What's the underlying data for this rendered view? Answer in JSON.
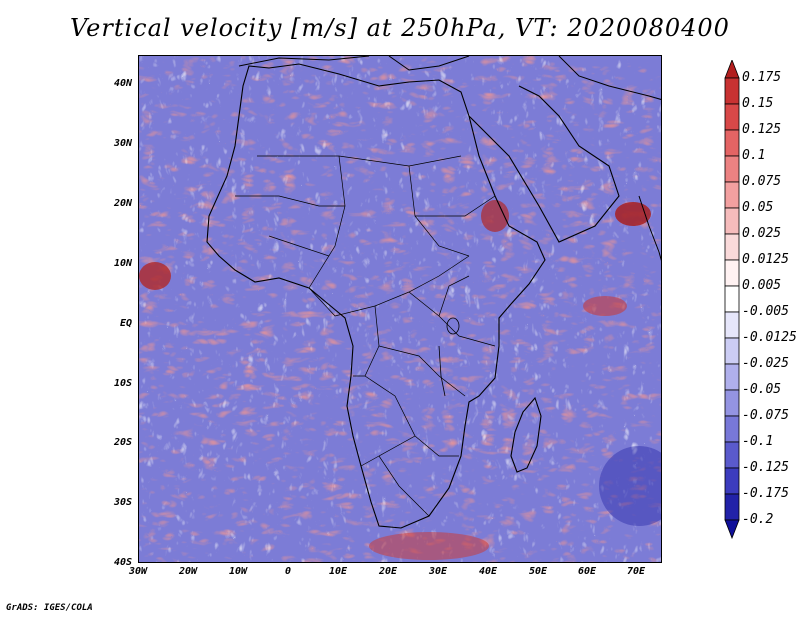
{
  "title": "Vertical velocity [m/s] at 250hPa, VT: 2020080400",
  "credit": "GrADS: IGES/COLA",
  "axes": {
    "lat_ticks": [
      "40N",
      "30N",
      "20N",
      "10N",
      "EQ",
      "10S",
      "20S",
      "30S",
      "40S"
    ],
    "lon_ticks": [
      "30W",
      "20W",
      "10W",
      "0",
      "10E",
      "20E",
      "30E",
      "40E",
      "50E",
      "60E",
      "70E"
    ],
    "lat_range": [
      -40,
      45
    ],
    "lon_range": [
      -30,
      75
    ]
  },
  "colorbar": {
    "labels": [
      "0.175",
      "0.15",
      "0.125",
      "0.1",
      "0.075",
      "0.05",
      "0.025",
      "0.0125",
      "0.005",
      "-0.005",
      "-0.0125",
      "-0.025",
      "-0.05",
      "-0.075",
      "-0.1",
      "-0.125",
      "-0.175",
      "-0.2"
    ],
    "colors": [
      "#b21e1e",
      "#c83232",
      "#d84848",
      "#e46464",
      "#ec8282",
      "#f2a0a0",
      "#f6bcbc",
      "#fadada",
      "#fff2f2",
      "#ffffff",
      "#e6e6fa",
      "#cccdf4",
      "#b0b0ec",
      "#9494e2",
      "#7878d8",
      "#5a5acc",
      "#3c3cbe",
      "#2222a8",
      "#10109a"
    ]
  },
  "colors": {
    "positive": "#d84848",
    "negative": "#4b4bc8",
    "background": "#ffffff"
  }
}
